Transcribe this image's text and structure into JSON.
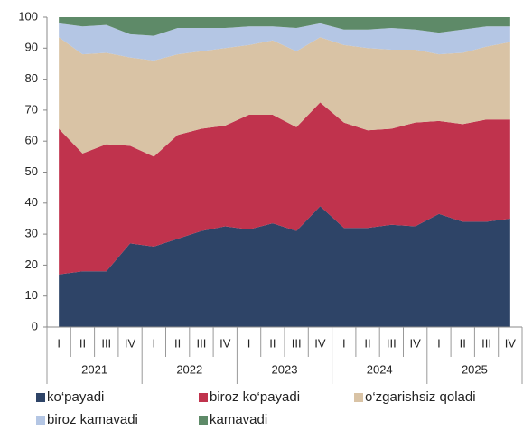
{
  "chart_data": {
    "type": "stacked_area",
    "categories": [
      "I",
      "II",
      "III",
      "IV",
      "I",
      "II",
      "III",
      "IV",
      "I",
      "II",
      "III",
      "IV",
      "I",
      "II",
      "III",
      "IV",
      "I",
      "II",
      "III",
      "IV"
    ],
    "groups": [
      "2021",
      "2022",
      "2023",
      "2024",
      "2025"
    ],
    "series": [
      {
        "name": "ko‘payadi",
        "color": "#2e4467",
        "values": [
          17,
          18,
          18,
          27,
          26,
          28.5,
          31,
          32.5,
          31.5,
          33.5,
          31,
          39,
          32,
          32,
          33,
          32.5,
          36.5,
          34,
          34,
          35
        ]
      },
      {
        "name": "biroz ko‘payadi",
        "color": "#c0334d",
        "values": [
          47,
          38,
          41,
          31.5,
          29,
          33.5,
          33,
          32.5,
          37,
          35,
          33.5,
          33.5,
          34,
          31.5,
          31,
          33.5,
          30,
          31.5,
          33,
          32
        ]
      },
      {
        "name": "o‘zgarishsiz qoladi",
        "color": "#d9c3a5",
        "values": [
          29.5,
          32,
          29.5,
          28.5,
          31,
          26,
          25,
          25,
          22.5,
          24,
          24.5,
          21,
          25,
          26.5,
          25.5,
          23.5,
          21.5,
          23,
          23.5,
          25
        ]
      },
      {
        "name": "biroz kamavadi",
        "color": "#b4c6e4",
        "values": [
          4.5,
          9,
          9,
          7.5,
          8,
          8.5,
          7.5,
          6.5,
          6,
          4.5,
          7.5,
          4.5,
          5,
          6,
          7,
          6.5,
          7,
          7.5,
          6.5,
          5
        ]
      },
      {
        "name": "kamavadi",
        "color": "#5e8a68",
        "values": [
          2,
          3,
          2.5,
          5.5,
          6,
          3.5,
          3.5,
          3.5,
          3,
          3,
          3.5,
          2,
          4,
          4,
          3.5,
          4,
          5,
          4,
          3,
          3
        ]
      }
    ],
    "ylim": [
      0,
      100
    ],
    "yticks": [
      0,
      10,
      20,
      30,
      40,
      50,
      60,
      70,
      80,
      90,
      100
    ]
  }
}
